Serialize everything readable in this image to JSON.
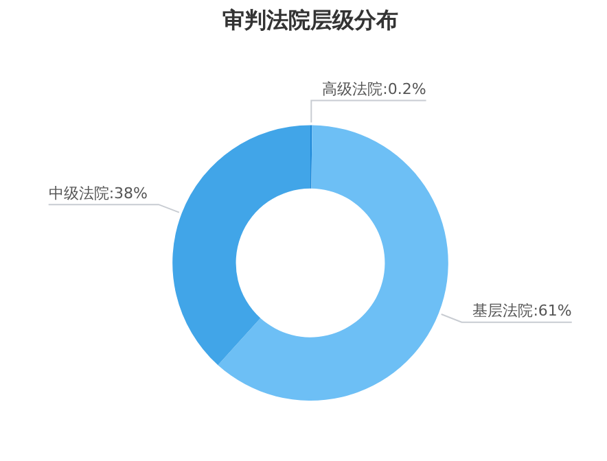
{
  "chart_data": {
    "type": "donut",
    "title": "审判法院层级分布",
    "categories": [
      "高级法院",
      "基层法院",
      "中级法院"
    ],
    "values": [
      0.2,
      61,
      38
    ],
    "value_labels": [
      "0.2%",
      "61%",
      "38%"
    ],
    "colors": [
      "#1e88d8",
      "#6dbff5",
      "#41a5e8"
    ],
    "legend": false
  }
}
